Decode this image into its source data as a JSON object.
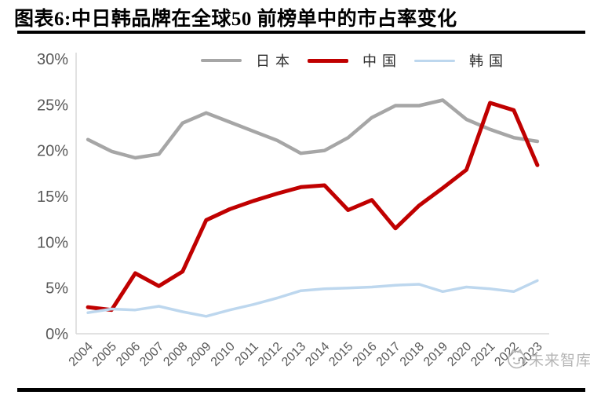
{
  "header": {
    "title": "图表6:中日韩品牌在全球50 前榜单中的市占率变化"
  },
  "watermark": {
    "text": "未来智库"
  },
  "colors": {
    "axis_line": "#d9d9d9",
    "axis_text": "#595959",
    "divider": "#000000",
    "japan_gray": "#a6a6a6",
    "china_red": "#c00000",
    "korea_blue": "#bdd7ee"
  },
  "chart_data": {
    "type": "line",
    "title": "中日韩品牌在全球50前榜单中的市占率变化",
    "categories": [
      "2004",
      "2005",
      "2006",
      "2007",
      "2008",
      "2009",
      "2010",
      "2011",
      "2012",
      "2013",
      "2014",
      "2015",
      "2016",
      "2017",
      "2018",
      "2019",
      "2020",
      "2021",
      "2022",
      "2023"
    ],
    "series": [
      {
        "name": "日本",
        "color": "#a6a6a6",
        "values": [
          21.2,
          19.9,
          19.2,
          19.6,
          23.0,
          24.1,
          23.1,
          22.1,
          21.1,
          19.7,
          20.0,
          21.4,
          23.6,
          24.9,
          24.9,
          25.5,
          23.4,
          22.3,
          21.4,
          21.0
        ]
      },
      {
        "name": "中国",
        "color": "#c00000",
        "values": [
          2.9,
          2.6,
          6.6,
          5.2,
          6.8,
          12.4,
          13.6,
          14.5,
          15.3,
          16.0,
          16.2,
          13.5,
          14.6,
          11.5,
          14.0,
          15.9,
          17.9,
          25.2,
          24.4,
          18.4
        ]
      },
      {
        "name": "韩国",
        "color": "#bdd7ee",
        "values": [
          2.3,
          2.7,
          2.6,
          3.0,
          2.4,
          1.9,
          2.6,
          3.2,
          3.9,
          4.7,
          4.9,
          5.0,
          5.1,
          5.3,
          5.4,
          4.6,
          5.1,
          4.9,
          4.6,
          5.8
        ]
      }
    ],
    "xlabel": "",
    "ylabel": "",
    "ylim": [
      0,
      30
    ],
    "ytick_step": 5,
    "ytick_labels": [
      "0%",
      "5%",
      "10%",
      "15%",
      "20%",
      "25%",
      "30%"
    ],
    "legend_position": "top",
    "grid": false
  }
}
